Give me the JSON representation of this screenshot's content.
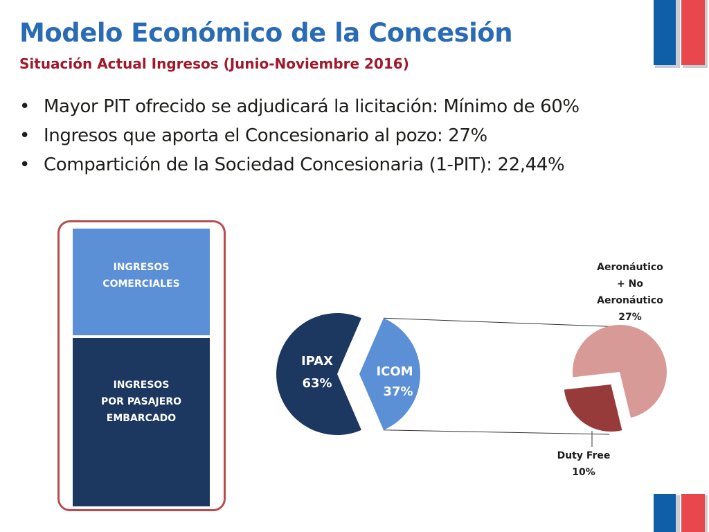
{
  "slide": {
    "title": "Modelo Económico de la Concesión",
    "subtitle": "Situación Actual Ingresos (Junio-Noviembre 2016)",
    "bullets": [
      "Mayor PIT ofrecido se adjudicará la licitación: Mínimo de 60%",
      "Ingresos que aporta el Concesionario al pozo: 27%",
      "Compartición de la Sociedad Concesionaria (1-PIT): 22,44%"
    ]
  },
  "stack": {
    "top_lines": [
      "INGRESOS",
      "COMERCIALES"
    ],
    "bottom_lines": [
      "INGRESOS",
      "POR PASAJERO",
      "EMBARCADO"
    ]
  },
  "chart_data": [
    {
      "type": "pie",
      "slices": [
        {
          "label": "IPAX",
          "value": 63,
          "value_label": "63%"
        },
        {
          "label": "ICOM",
          "value": 37,
          "value_label": "37%"
        }
      ],
      "colors": [
        "#1c3760",
        "#5b8fd6"
      ]
    },
    {
      "type": "pie",
      "slices": [
        {
          "label_lines": [
            "Aeronáutico",
            "+ No",
            "Aeronáutico"
          ],
          "value": 27,
          "value_label": "27%"
        },
        {
          "label_lines": [
            "Duty Free"
          ],
          "value": 10,
          "value_label": "10%"
        }
      ],
      "colors": [
        "#d89a96",
        "#963b3a"
      ]
    }
  ],
  "colors": {
    "title": "#2a6cb3",
    "subtitle": "#a0182a",
    "flag_blue": "#0f5ea8",
    "flag_red": "#e8474d"
  }
}
